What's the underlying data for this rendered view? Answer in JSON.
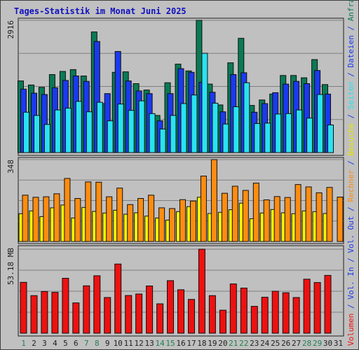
{
  "title": "Tages-Statistik im Monat Juni 2025",
  "colors": {
    "background": "#c0c0c0",
    "title": "#1010c0",
    "anfragen": "#0a7a55",
    "dateien": "#1a3aee",
    "seiten": "#2ae2f2",
    "besuche": "#f5f500",
    "rechner": "#ff8c10",
    "volumen": "#ee1111",
    "weekend_label": "#208050",
    "day_label": "#202020"
  },
  "chart_data": {
    "type": "bar",
    "title": "Tages-Statistik im Monat Juni 2025",
    "categories": [
      "1",
      "2",
      "3",
      "4",
      "5",
      "6",
      "7",
      "8",
      "9",
      "10",
      "11",
      "12",
      "13",
      "14",
      "15",
      "16",
      "17",
      "18",
      "19",
      "20",
      "21",
      "22",
      "23",
      "24",
      "25",
      "26",
      "27",
      "28",
      "29",
      "30",
      "31"
    ],
    "weekend_days": [
      "1",
      "7",
      "8",
      "14",
      "15",
      "21",
      "22",
      "28",
      "29"
    ],
    "panels": [
      {
        "name": "hits",
        "ymax_label": "2916",
        "ymax": 2916,
        "series": [
          {
            "name": "Anfragen",
            "color": "#0a7a55",
            "values": [
              1580,
              1490,
              1440,
              1720,
              1790,
              1830,
              1690,
              2660,
              1080,
              1770,
              1780,
              1520,
              1380,
              820,
              1540,
              1950,
              1800,
              2916,
              1510,
              1050,
              1980,
              2520,
              1040,
              1160,
              1290,
              1700,
              1700,
              1650,
              2050,
              1500,
              null
            ]
          },
          {
            "name": "Dateien",
            "color": "#1a3aee",
            "values": [
              1400,
              1310,
              1280,
              1430,
              1590,
              1690,
              1570,
              2450,
              1300,
              2230,
              1580,
              1360,
              1300,
              700,
              1300,
              1850,
              1770,
              1550,
              1330,
              900,
              1720,
              1760,
              890,
              1080,
              1320,
              1510,
              1570,
              1520,
              1810,
              1290,
              null
            ]
          },
          {
            "name": "Seiten",
            "color": "#2ae2f2",
            "values": [
              890,
              820,
              620,
              940,
              980,
              1130,
              900,
              1110,
              700,
              1070,
              930,
              1140,
              860,
              520,
              820,
              1080,
              1270,
              2190,
              1090,
              630,
              1010,
              1540,
              640,
              650,
              850,
              860,
              940,
              760,
              1280,
              610,
              null
            ]
          }
        ]
      },
      {
        "name": "visits",
        "ymax_label": "348",
        "ymax": 348,
        "series": [
          {
            "name": "Besuche",
            "color": "#f5f500",
            "values": [
              118,
              130,
              106,
              143,
              155,
              100,
              145,
              128,
              121,
              133,
              116,
              122,
              108,
              100,
              91,
              127,
              148,
              188,
              119,
              124,
              135,
              163,
              97,
              121,
              136,
              122,
              118,
              130,
              127,
              119,
              null
            ]
          },
          {
            "name": "Rechner",
            "color": "#ff8c10",
            "values": [
              197,
              188,
              190,
              203,
              268,
              183,
              253,
              252,
              190,
              227,
              157,
              183,
              197,
              143,
              140,
              178,
              172,
              278,
              348,
              205,
              235,
              217,
              248,
              177,
              191,
              187,
              242,
              232,
              207,
              230,
              189
            ]
          }
        ]
      },
      {
        "name": "volume",
        "ymax_label": "53.18 MB",
        "ymax": 53.18,
        "series": [
          {
            "name": "Volumen",
            "color": "#ee1111",
            "values": [
              32.2,
              23.8,
              26.4,
              25.9,
              34.8,
              19.2,
              30.0,
              36.4,
              22.6,
              43.8,
              23.9,
              24.8,
              29.9,
              18.6,
              33.3,
              27.5,
              21.4,
              53.18,
              23.8,
              14.6,
              31.2,
              28.6,
              17.0,
              22.8,
              26.6,
              25.6,
              22.6,
              34.2,
              32.1,
              36.6,
              null
            ]
          }
        ]
      }
    ],
    "right_legend": [
      {
        "text": "Volumen",
        "color": "#ee1111"
      },
      {
        "text": " / ",
        "color": "#1a3aee"
      },
      {
        "text": "Vol. In",
        "color": "#1a3aee"
      },
      {
        "text": " / ",
        "color": "#1a3aee"
      },
      {
        "text": "Vol. Out",
        "color": "#1a3aee"
      },
      {
        "text": " / ",
        "color": "#1a3aee"
      },
      {
        "text": "Rechner",
        "color": "#ff8c10"
      },
      {
        "text": " / ",
        "color": "#1a3aee"
      },
      {
        "text": "Besuche",
        "color": "#e5e500"
      },
      {
        "text": " / ",
        "color": "#1a3aee"
      },
      {
        "text": "Seiten",
        "color": "#2ae2f2"
      },
      {
        "text": " / ",
        "color": "#1a3aee"
      },
      {
        "text": "Dateien",
        "color": "#1a3aee"
      },
      {
        "text": " / ",
        "color": "#1a3aee"
      },
      {
        "text": "Anfragen",
        "color": "#0a7a55"
      }
    ]
  }
}
